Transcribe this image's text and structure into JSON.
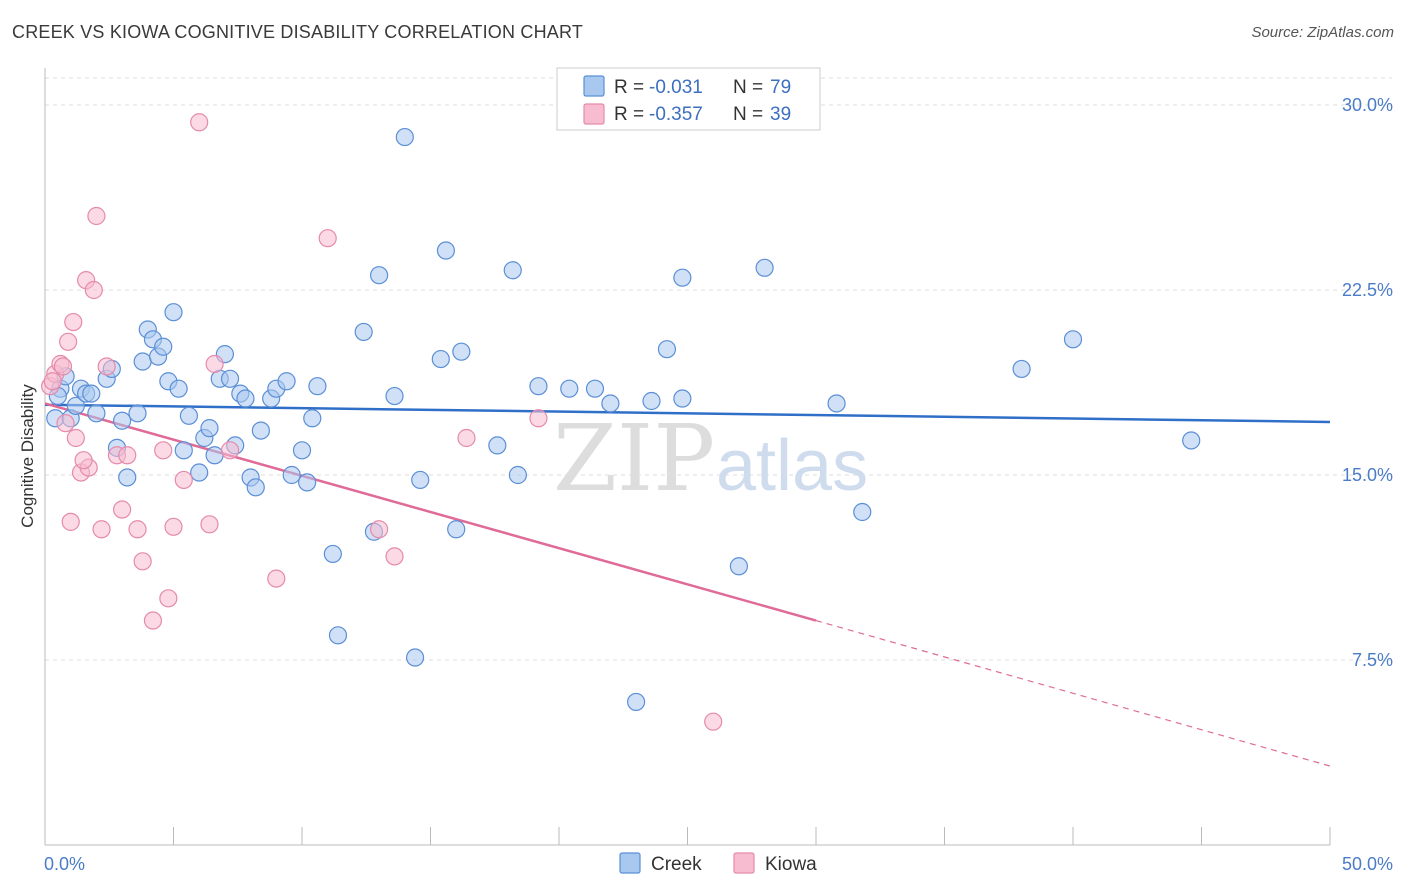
{
  "header": {
    "title": "CREEK VS KIOWA COGNITIVE DISABILITY CORRELATION CHART",
    "source": "Source: ZipAtlas.com"
  },
  "watermark": {
    "zip": "ZIP",
    "atlas": "atlas"
  },
  "colors": {
    "creek_fill": "#a9c8f0",
    "creek_stroke": "#5b8fd6",
    "creek_line": "#2f6fc8",
    "kiowa_fill": "#f7bcd0",
    "kiowa_stroke": "#e58aab",
    "kiowa_line": "#e06b98",
    "tick_label": "#4a7cc7",
    "grid": "#dddddd"
  },
  "legend": {
    "r_label": "R =",
    "n_label": "N =",
    "rows": [
      {
        "series": "Creek",
        "r": "-0.031",
        "n": "79"
      },
      {
        "series": "Kiowa",
        "r": "-0.357",
        "n": "39"
      }
    ]
  },
  "bottom_legend": [
    "Creek",
    "Kiowa"
  ],
  "chart_data": {
    "type": "scatter",
    "title": "CREEK VS KIOWA COGNITIVE DISABILITY CORRELATION CHART",
    "xlabel": "",
    "ylabel": "Cognitive Disability",
    "xlim": [
      0,
      50
    ],
    "ylim": [
      0,
      31.5
    ],
    "x_tick_labels": [
      "0.0%",
      "50.0%"
    ],
    "y_ticks": [
      7.5,
      15.0,
      22.5,
      30.0
    ],
    "y_tick_labels": [
      "7.5%",
      "15.0%",
      "22.5%",
      "30.0%"
    ],
    "grid": "horizontal dashed",
    "legend_position": "top-center",
    "series": [
      {
        "name": "Creek",
        "points": [
          [
            0.4,
            17.3
          ],
          [
            0.6,
            18.5
          ],
          [
            0.8,
            19.0
          ],
          [
            1.0,
            17.3
          ],
          [
            1.2,
            17.8
          ],
          [
            1.4,
            18.5
          ],
          [
            1.6,
            18.3
          ],
          [
            1.8,
            18.3
          ],
          [
            2.0,
            17.5
          ],
          [
            2.4,
            18.9
          ],
          [
            2.6,
            19.3
          ],
          [
            2.8,
            16.1
          ],
          [
            3.0,
            17.2
          ],
          [
            3.2,
            14.9
          ],
          [
            3.6,
            17.5
          ],
          [
            3.8,
            19.6
          ],
          [
            4.0,
            20.9
          ],
          [
            4.2,
            20.5
          ],
          [
            4.4,
            19.8
          ],
          [
            4.6,
            20.2
          ],
          [
            4.8,
            18.8
          ],
          [
            5.0,
            21.6
          ],
          [
            5.2,
            18.5
          ],
          [
            5.4,
            16.0
          ],
          [
            5.6,
            17.4
          ],
          [
            6.0,
            15.1
          ],
          [
            6.2,
            16.5
          ],
          [
            6.4,
            16.9
          ],
          [
            6.6,
            15.8
          ],
          [
            6.8,
            18.9
          ],
          [
            7.0,
            19.9
          ],
          [
            7.2,
            18.9
          ],
          [
            7.4,
            16.2
          ],
          [
            7.6,
            18.3
          ],
          [
            7.8,
            18.1
          ],
          [
            8.0,
            14.9
          ],
          [
            8.2,
            14.5
          ],
          [
            8.4,
            16.8
          ],
          [
            8.8,
            18.1
          ],
          [
            9.0,
            18.5
          ],
          [
            9.4,
            18.8
          ],
          [
            9.6,
            15.0
          ],
          [
            10.0,
            16.0
          ],
          [
            10.2,
            14.7
          ],
          [
            10.4,
            17.3
          ],
          [
            10.6,
            18.6
          ],
          [
            11.2,
            11.8
          ],
          [
            11.4,
            8.5
          ],
          [
            12.4,
            20.8
          ],
          [
            12.8,
            12.7
          ],
          [
            13.0,
            23.1
          ],
          [
            13.6,
            18.2
          ],
          [
            14.0,
            28.7
          ],
          [
            14.4,
            7.6
          ],
          [
            14.6,
            14.8
          ],
          [
            15.4,
            19.7
          ],
          [
            15.6,
            24.1
          ],
          [
            16.0,
            12.8
          ],
          [
            16.2,
            20.0
          ],
          [
            17.6,
            16.2
          ],
          [
            18.2,
            23.3
          ],
          [
            18.4,
            15.0
          ],
          [
            19.2,
            18.6
          ],
          [
            20.4,
            18.5
          ],
          [
            21.4,
            18.5
          ],
          [
            22.0,
            17.9
          ],
          [
            23.0,
            5.8
          ],
          [
            23.6,
            18.0
          ],
          [
            24.2,
            20.1
          ],
          [
            24.8,
            23.0
          ],
          [
            24.8,
            18.1
          ],
          [
            27.0,
            11.3
          ],
          [
            28.0,
            23.4
          ],
          [
            30.8,
            17.9
          ],
          [
            31.8,
            13.5
          ],
          [
            38.0,
            19.3
          ],
          [
            40.0,
            20.5
          ],
          [
            44.6,
            16.4
          ],
          [
            0.5,
            18.2
          ]
        ],
        "trend": {
          "x": [
            0,
            50
          ],
          "y": [
            17.85,
            17.15
          ]
        }
      },
      {
        "name": "Kiowa",
        "points": [
          [
            0.2,
            18.6
          ],
          [
            0.4,
            19.1
          ],
          [
            0.6,
            19.5
          ],
          [
            0.8,
            17.1
          ],
          [
            0.9,
            20.4
          ],
          [
            1.0,
            13.1
          ],
          [
            1.1,
            21.2
          ],
          [
            1.2,
            16.5
          ],
          [
            1.4,
            15.1
          ],
          [
            1.6,
            22.9
          ],
          [
            1.7,
            15.3
          ],
          [
            1.9,
            22.5
          ],
          [
            2.0,
            25.5
          ],
          [
            2.2,
            12.8
          ],
          [
            2.4,
            19.4
          ],
          [
            2.8,
            15.8
          ],
          [
            3.0,
            13.6
          ],
          [
            3.2,
            15.8
          ],
          [
            3.6,
            12.8
          ],
          [
            3.8,
            11.5
          ],
          [
            4.2,
            9.1
          ],
          [
            4.6,
            16.0
          ],
          [
            4.8,
            10.0
          ],
          [
            5.0,
            12.9
          ],
          [
            5.4,
            14.8
          ],
          [
            6.0,
            29.3
          ],
          [
            6.4,
            13.0
          ],
          [
            6.6,
            19.5
          ],
          [
            7.2,
            16.0
          ],
          [
            9.0,
            10.8
          ],
          [
            11.0,
            24.6
          ],
          [
            13.0,
            12.8
          ],
          [
            13.6,
            11.7
          ],
          [
            16.4,
            16.5
          ],
          [
            19.2,
            17.3
          ],
          [
            26.0,
            5.0
          ],
          [
            0.3,
            18.8
          ],
          [
            1.5,
            15.6
          ],
          [
            0.7,
            19.4
          ]
        ],
        "trend": {
          "x": [
            0,
            30
          ],
          "y": [
            17.9,
            9.1
          ],
          "dashed_extension": {
            "x": [
              30,
              50
            ],
            "y": [
              9.1,
              3.2
            ]
          }
        }
      }
    ]
  }
}
